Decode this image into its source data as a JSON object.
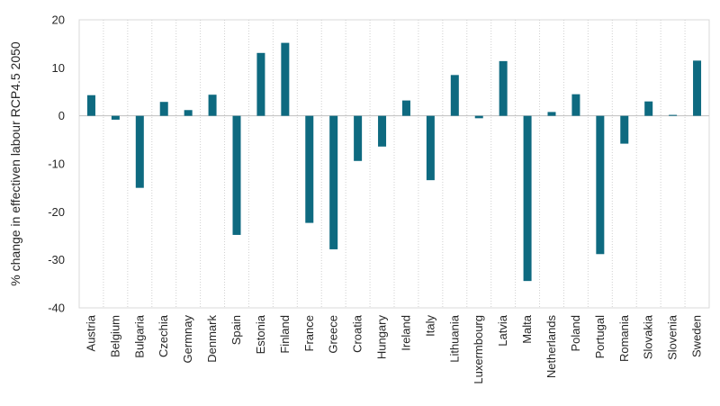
{
  "chart_data": {
    "type": "bar",
    "ylabel": "% change in effectiven labour RCP4.5 2050",
    "ylim": [
      -40,
      20
    ],
    "yticks": [
      20,
      10,
      0,
      -10,
      -20,
      -30,
      -40
    ],
    "grid": "vertical dotted",
    "bar_color": "#0e6a80",
    "categories": [
      "Austria",
      "Belgium",
      "Bulgaria",
      "Czechia",
      "Germnay",
      "Denmark",
      "Spain",
      "Estonia",
      "Finland",
      "France",
      "Greece",
      "Croatia",
      "Hungary",
      "Ireland",
      "Italy",
      "Lithuania",
      "Luxermbourg",
      "Latvia",
      "Malta",
      "Netherlands",
      "Poland",
      "Portugal",
      "Romania",
      "Slovakia",
      "Slovenia",
      "Sweden"
    ],
    "values": [
      4.3,
      -0.8,
      -15.0,
      2.9,
      1.2,
      4.4,
      -24.8,
      13.1,
      15.2,
      -22.3,
      -27.8,
      -9.4,
      -6.4,
      3.2,
      -13.4,
      8.5,
      -0.5,
      11.4,
      -34.4,
      0.8,
      4.5,
      -28.8,
      -5.8,
      3.0,
      0.2,
      11.5
    ]
  }
}
